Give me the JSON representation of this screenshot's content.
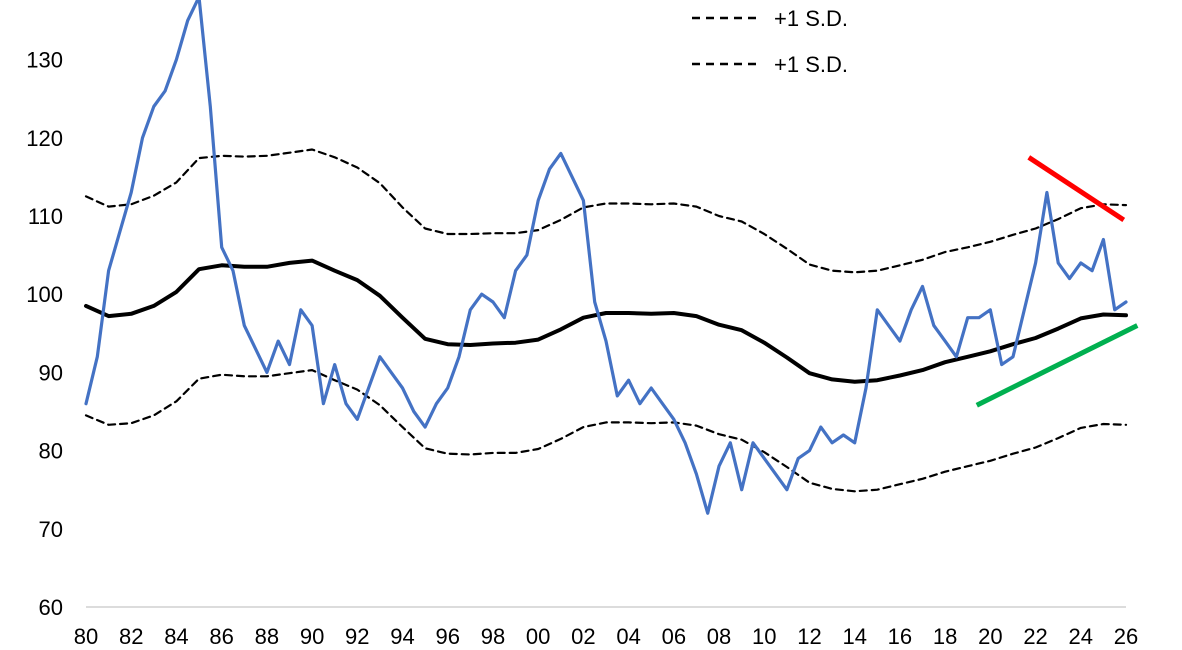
{
  "chart_data": {
    "type": "line",
    "title": "",
    "xlabel": "",
    "ylabel": "",
    "ylim": [
      60,
      138
    ],
    "xlim": [
      1980,
      2026
    ],
    "grid": false,
    "legend_placement": "top-center",
    "x_ticks": [
      "80",
      "82",
      "84",
      "86",
      "88",
      "90",
      "92",
      "94",
      "96",
      "98",
      "00",
      "02",
      "04",
      "06",
      "08",
      "10",
      "12",
      "14",
      "16",
      "18",
      "20",
      "22",
      "24",
      "26"
    ],
    "y_ticks": [
      60,
      70,
      80,
      90,
      100,
      110,
      120,
      130
    ],
    "legend": [
      {
        "label": "+1 S.D.",
        "style": "dashed"
      },
      {
        "label": "+1 S.D.",
        "style": "dashed"
      }
    ],
    "series": [
      {
        "style": "blue-line",
        "color": "#4472C4",
        "x": [
          1980.0,
          1980.5,
          1981.0,
          1981.5,
          1982.0,
          1982.5,
          1983.0,
          1983.5,
          1984.0,
          1984.5,
          1985.0,
          1985.5,
          1986.0,
          1986.5,
          1987.0,
          1987.5,
          1988.0,
          1988.5,
          1989.0,
          1989.5,
          1990.0,
          1990.5,
          1991.0,
          1991.5,
          1992.0,
          1992.5,
          1993.0,
          1993.5,
          1994.0,
          1994.5,
          1995.0,
          1995.5,
          1996.0,
          1996.5,
          1997.0,
          1997.5,
          1998.0,
          1998.5,
          1999.0,
          1999.5,
          2000.0,
          2000.5,
          2001.0,
          2001.5,
          2002.0,
          2002.5,
          2003.0,
          2003.5,
          2004.0,
          2004.5,
          2005.0,
          2005.5,
          2006.0,
          2006.5,
          2007.0,
          2007.5,
          2008.0,
          2008.5,
          2009.0,
          2009.5,
          2010.0,
          2010.5,
          2011.0,
          2011.5,
          2012.0,
          2012.5,
          2013.0,
          2013.5,
          2014.0,
          2014.5,
          2015.0,
          2015.5,
          2016.0,
          2016.5,
          2017.0,
          2017.5,
          2018.0,
          2018.5,
          2019.0,
          2019.5,
          2020.0,
          2020.5,
          2021.0,
          2021.5,
          2022.0,
          2022.5,
          2023.0,
          2023.5,
          2024.0,
          2024.5,
          2025.0,
          2025.5,
          2026.0
        ],
        "values": [
          86,
          92,
          103,
          108,
          113,
          120,
          124,
          126,
          130,
          135,
          138,
          124,
          106,
          103,
          96,
          93,
          90,
          94,
          91,
          98,
          96,
          86,
          91,
          86,
          84,
          88,
          92,
          90,
          88,
          85,
          83,
          86,
          88,
          92,
          98,
          100,
          99,
          97,
          103,
          105,
          112,
          116,
          118,
          115,
          112,
          99,
          94,
          87,
          89,
          86,
          88,
          86,
          84,
          81,
          77,
          72,
          78,
          81,
          75,
          81,
          79,
          77,
          75,
          79,
          80,
          83,
          81,
          82,
          81,
          88,
          98,
          96,
          94,
          98,
          101,
          96,
          94,
          92,
          97,
          97,
          98,
          91,
          92,
          98,
          104,
          113,
          104,
          102,
          104,
          103,
          107,
          98,
          99
        ]
      },
      {
        "style": "black-mean",
        "color": "#000000",
        "x": [
          1980,
          1981,
          1982,
          1983,
          1984,
          1985,
          1986,
          1987,
          1988,
          1989,
          1990,
          1991,
          1992,
          1993,
          1994,
          1995,
          1996,
          1997,
          1998,
          1999,
          2000,
          2001,
          2002,
          2003,
          2004,
          2005,
          2006,
          2007,
          2008,
          2009,
          2010,
          2011,
          2012,
          2013,
          2014,
          2015,
          2016,
          2017,
          2018,
          2019,
          2020,
          2021,
          2022,
          2023,
          2024,
          2025,
          2026
        ],
        "values": [
          98.5,
          97.2,
          97.5,
          98.5,
          100.3,
          103.2,
          103.7,
          103.5,
          103.5,
          104.0,
          104.3,
          103.0,
          101.8,
          99.8,
          97.0,
          94.3,
          93.6,
          93.5,
          93.7,
          93.8,
          94.2,
          95.5,
          97.0,
          97.6,
          97.6,
          97.5,
          97.6,
          97.2,
          96.1,
          95.4,
          93.8,
          91.9,
          89.9,
          89.1,
          88.8,
          89.0,
          89.6,
          90.3,
          91.3,
          92.0,
          92.7,
          93.6,
          94.4,
          95.6,
          96.9,
          97.4,
          97.3
        ]
      },
      {
        "style": "dashed-upper",
        "color": "#000000",
        "x": [
          1980,
          1981,
          1982,
          1983,
          1984,
          1985,
          1986,
          1987,
          1988,
          1989,
          1990,
          1991,
          1992,
          1993,
          1994,
          1995,
          1996,
          1997,
          1998,
          1999,
          2000,
          2001,
          2002,
          2003,
          2004,
          2005,
          2006,
          2007,
          2008,
          2009,
          2010,
          2011,
          2012,
          2013,
          2014,
          2015,
          2016,
          2017,
          2018,
          2019,
          2020,
          2021,
          2022,
          2023,
          2024,
          2025,
          2026
        ],
        "values": [
          112.5,
          111.2,
          111.5,
          112.6,
          114.3,
          117.4,
          117.7,
          117.6,
          117.7,
          118.1,
          118.5,
          117.5,
          116.2,
          114.2,
          111.1,
          108.4,
          107.7,
          107.7,
          107.8,
          107.8,
          108.2,
          109.5,
          111.1,
          111.6,
          111.6,
          111.5,
          111.6,
          111.2,
          110.0,
          109.3,
          107.7,
          105.8,
          103.8,
          103.0,
          102.8,
          103.0,
          103.7,
          104.4,
          105.4,
          106.0,
          106.7,
          107.6,
          108.4,
          109.6,
          111.0,
          111.5,
          111.4
        ]
      },
      {
        "style": "dashed-lower",
        "color": "#000000",
        "x": [
          1980,
          1981,
          1982,
          1983,
          1984,
          1985,
          1986,
          1987,
          1988,
          1989,
          1990,
          1991,
          1992,
          1993,
          1994,
          1995,
          1996,
          1997,
          1998,
          1999,
          2000,
          2001,
          2002,
          2003,
          2004,
          2005,
          2006,
          2007,
          2008,
          2009,
          2010,
          2011,
          2012,
          2013,
          2014,
          2015,
          2016,
          2017,
          2018,
          2019,
          2020,
          2021,
          2022,
          2023,
          2024,
          2025,
          2026
        ],
        "values": [
          84.5,
          83.3,
          83.5,
          84.5,
          86.3,
          89.2,
          89.7,
          89.5,
          89.5,
          89.9,
          90.3,
          89.0,
          87.8,
          85.8,
          83.0,
          80.3,
          79.6,
          79.5,
          79.7,
          79.7,
          80.2,
          81.5,
          83.0,
          83.6,
          83.6,
          83.5,
          83.6,
          83.2,
          82.1,
          81.4,
          79.8,
          77.9,
          75.9,
          75.1,
          74.8,
          75.0,
          75.7,
          76.4,
          77.3,
          78.0,
          78.7,
          79.6,
          80.4,
          81.6,
          82.9,
          83.4,
          83.3
        ]
      }
    ],
    "annotations": [
      {
        "type": "trendline",
        "color": "#FF0000",
        "x": [
          2021.7,
          2025.9
        ],
        "y": [
          117.5,
          109.5
        ]
      },
      {
        "type": "trendline",
        "color": "#00B050",
        "x": [
          2019.4,
          2026.5
        ],
        "y": [
          85.8,
          96.0
        ]
      }
    ]
  }
}
